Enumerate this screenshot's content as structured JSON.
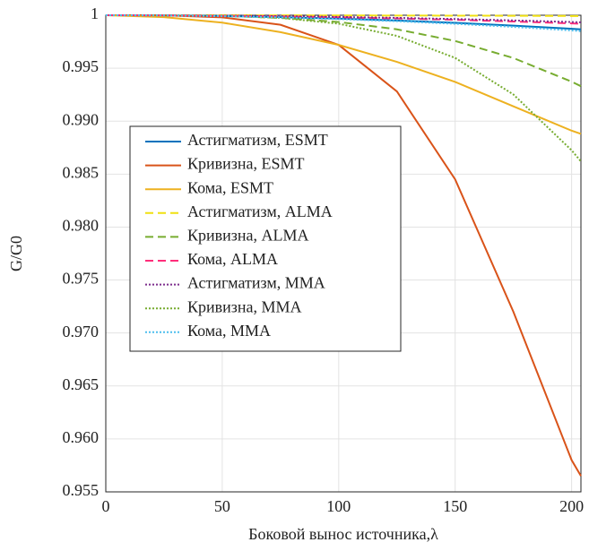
{
  "chart_data": {
    "type": "line",
    "xlabel": "Боковой вынос источника,λ",
    "ylabel": "G/G0",
    "xlim": [
      0,
      204
    ],
    "ylim": [
      0.955,
      1
    ],
    "xticks": [
      0,
      50,
      100,
      150,
      200
    ],
    "yticks": [
      0.955,
      {
        "value": 0.96,
        "label": "0.960"
      },
      0.965,
      {
        "value": 0.97,
        "label": "0.970"
      },
      0.975,
      {
        "value": 0.98,
        "label": "0.980"
      },
      0.985,
      {
        "value": 0.99,
        "label": "0.990"
      },
      0.995,
      1
    ],
    "grid": true,
    "x": [
      0,
      25,
      50,
      75,
      100,
      125,
      150,
      175,
      200,
      204
    ],
    "series": [
      {
        "name": "Астигматизм, ESMT",
        "color": "#0072bd",
        "style": "solid",
        "values": [
          1,
          0.99998,
          0.99992,
          0.99982,
          0.99968,
          0.9995,
          0.99928,
          0.99902,
          0.99872,
          0.99867
        ]
      },
      {
        "name": "Кривизна, ESMT",
        "color": "#d95319",
        "style": "solid",
        "values": [
          1,
          0.99999,
          0.9998,
          0.9991,
          0.9972,
          0.9928,
          0.9845,
          0.972,
          0.958,
          0.9565
        ]
      },
      {
        "name": "Кома, ESMT",
        "color": "#edb120",
        "style": "solid",
        "values": [
          1,
          0.99982,
          0.9993,
          0.9984,
          0.9972,
          0.9956,
          0.9937,
          0.9914,
          0.9891,
          0.9888
        ]
      },
      {
        "name": "Астигматизм, ALMA",
        "color": "#f0e010",
        "style": "dashed",
        "values": [
          1,
          1,
          1,
          0.99999,
          0.99998,
          0.99997,
          0.99996,
          0.99995,
          0.99993,
          0.99993
        ]
      },
      {
        "name": "Кривизна, ALMA",
        "color": "#77ac30",
        "style": "dashed",
        "values": [
          1,
          1,
          0.99994,
          0.99975,
          0.99936,
          0.99867,
          0.99757,
          0.99596,
          0.99373,
          0.9933
        ]
      },
      {
        "name": "Кома,  ALMA",
        "color": "#ff2d7a",
        "style": "dashed",
        "values": [
          1,
          0.99999,
          0.99995,
          0.99989,
          0.99981,
          0.9997,
          0.99957,
          0.99941,
          0.99923,
          0.9992
        ]
      },
      {
        "name": "Астигматизм, MMA",
        "color": "#7e2f8e",
        "style": "dotted",
        "values": [
          1,
          0.99999,
          0.99996,
          0.99991,
          0.99984,
          0.99975,
          0.99964,
          0.99951,
          0.99936,
          0.99933
        ]
      },
      {
        "name": "Кривизна, MMA",
        "color": "#77ac30",
        "style": "dotted",
        "values": [
          1,
          1,
          0.99995,
          0.99975,
          0.9992,
          0.99805,
          0.99597,
          0.99252,
          0.98725,
          0.9862
        ]
      },
      {
        "name": "Кома,  MMA",
        "color": "#4dbeee",
        "style": "dotted",
        "values": [
          1,
          0.99998,
          0.99991,
          0.9998,
          0.99964,
          0.99944,
          0.99919,
          0.9989,
          0.99856,
          0.9985
        ]
      }
    ]
  }
}
